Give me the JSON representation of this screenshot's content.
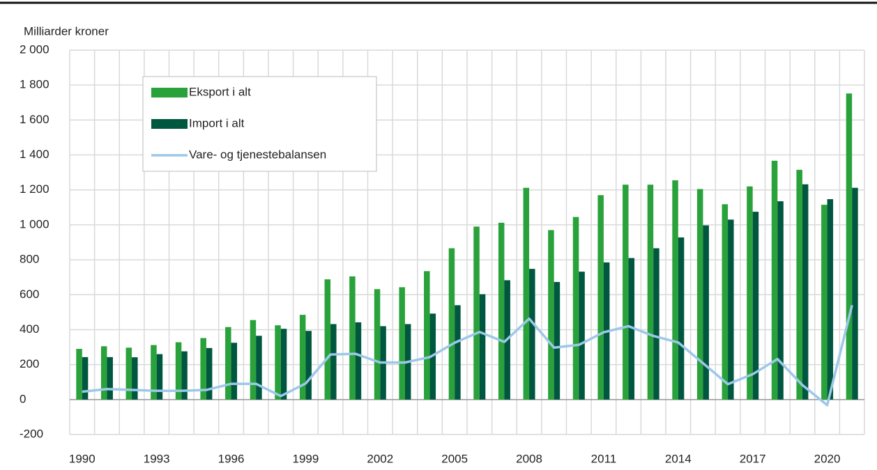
{
  "chart_data": {
    "type": "bar",
    "ylabel": "Milliarder kroner",
    "categories": [
      "1990",
      null,
      null,
      "1993",
      null,
      null,
      "1996",
      null,
      null,
      "1999",
      null,
      null,
      "2002",
      null,
      null,
      "2005",
      null,
      null,
      "2008",
      null,
      null,
      "2011",
      null,
      null,
      "2014",
      null,
      null,
      "2017",
      null,
      null,
      "2020",
      null
    ],
    "series": [
      {
        "name": "Eksport i alt",
        "type": "bar",
        "color": "#2aa23b",
        "values": [
          290,
          305,
          297,
          312,
          328,
          352,
          415,
          455,
          425,
          485,
          688,
          705,
          632,
          643,
          735,
          866,
          990,
          1012,
          1212,
          970,
          1045,
          1170,
          1230,
          1230,
          1255,
          1205,
          1118,
          1220,
          1367,
          1315,
          1115,
          1752
        ]
      },
      {
        "name": "Import i alt",
        "type": "bar",
        "color": "#00573f",
        "values": [
          243,
          243,
          242,
          260,
          276,
          295,
          325,
          365,
          405,
          393,
          432,
          442,
          420,
          432,
          492,
          540,
          603,
          683,
          748,
          673,
          732,
          785,
          810,
          866,
          928,
          997,
          1030,
          1075,
          1135,
          1232,
          1147,
          1212
        ]
      },
      {
        "name": "Vare- og tjenestebalansen",
        "type": "line",
        "color": "#9dc8e8",
        "values": [
          45,
          60,
          55,
          50,
          50,
          55,
          90,
          90,
          20,
          92,
          258,
          262,
          212,
          212,
          243,
          325,
          387,
          330,
          463,
          297,
          313,
          385,
          420,
          364,
          327,
          208,
          88,
          145,
          232,
          83,
          -32,
          540
        ]
      }
    ],
    "ylim": [
      -200,
      2000
    ],
    "yticks": [
      -200,
      0,
      200,
      400,
      600,
      800,
      {
        "value": 1000,
        "label": "1 000"
      },
      {
        "value": 1200,
        "label": "1 200"
      },
      {
        "value": 1400,
        "label": "1 400"
      },
      {
        "value": 1600,
        "label": "1 600"
      },
      {
        "value": 1800,
        "label": "1 800"
      },
      {
        "value": 2000,
        "label": "2 000"
      }
    ],
    "grid": true,
    "legend": "upper left"
  }
}
